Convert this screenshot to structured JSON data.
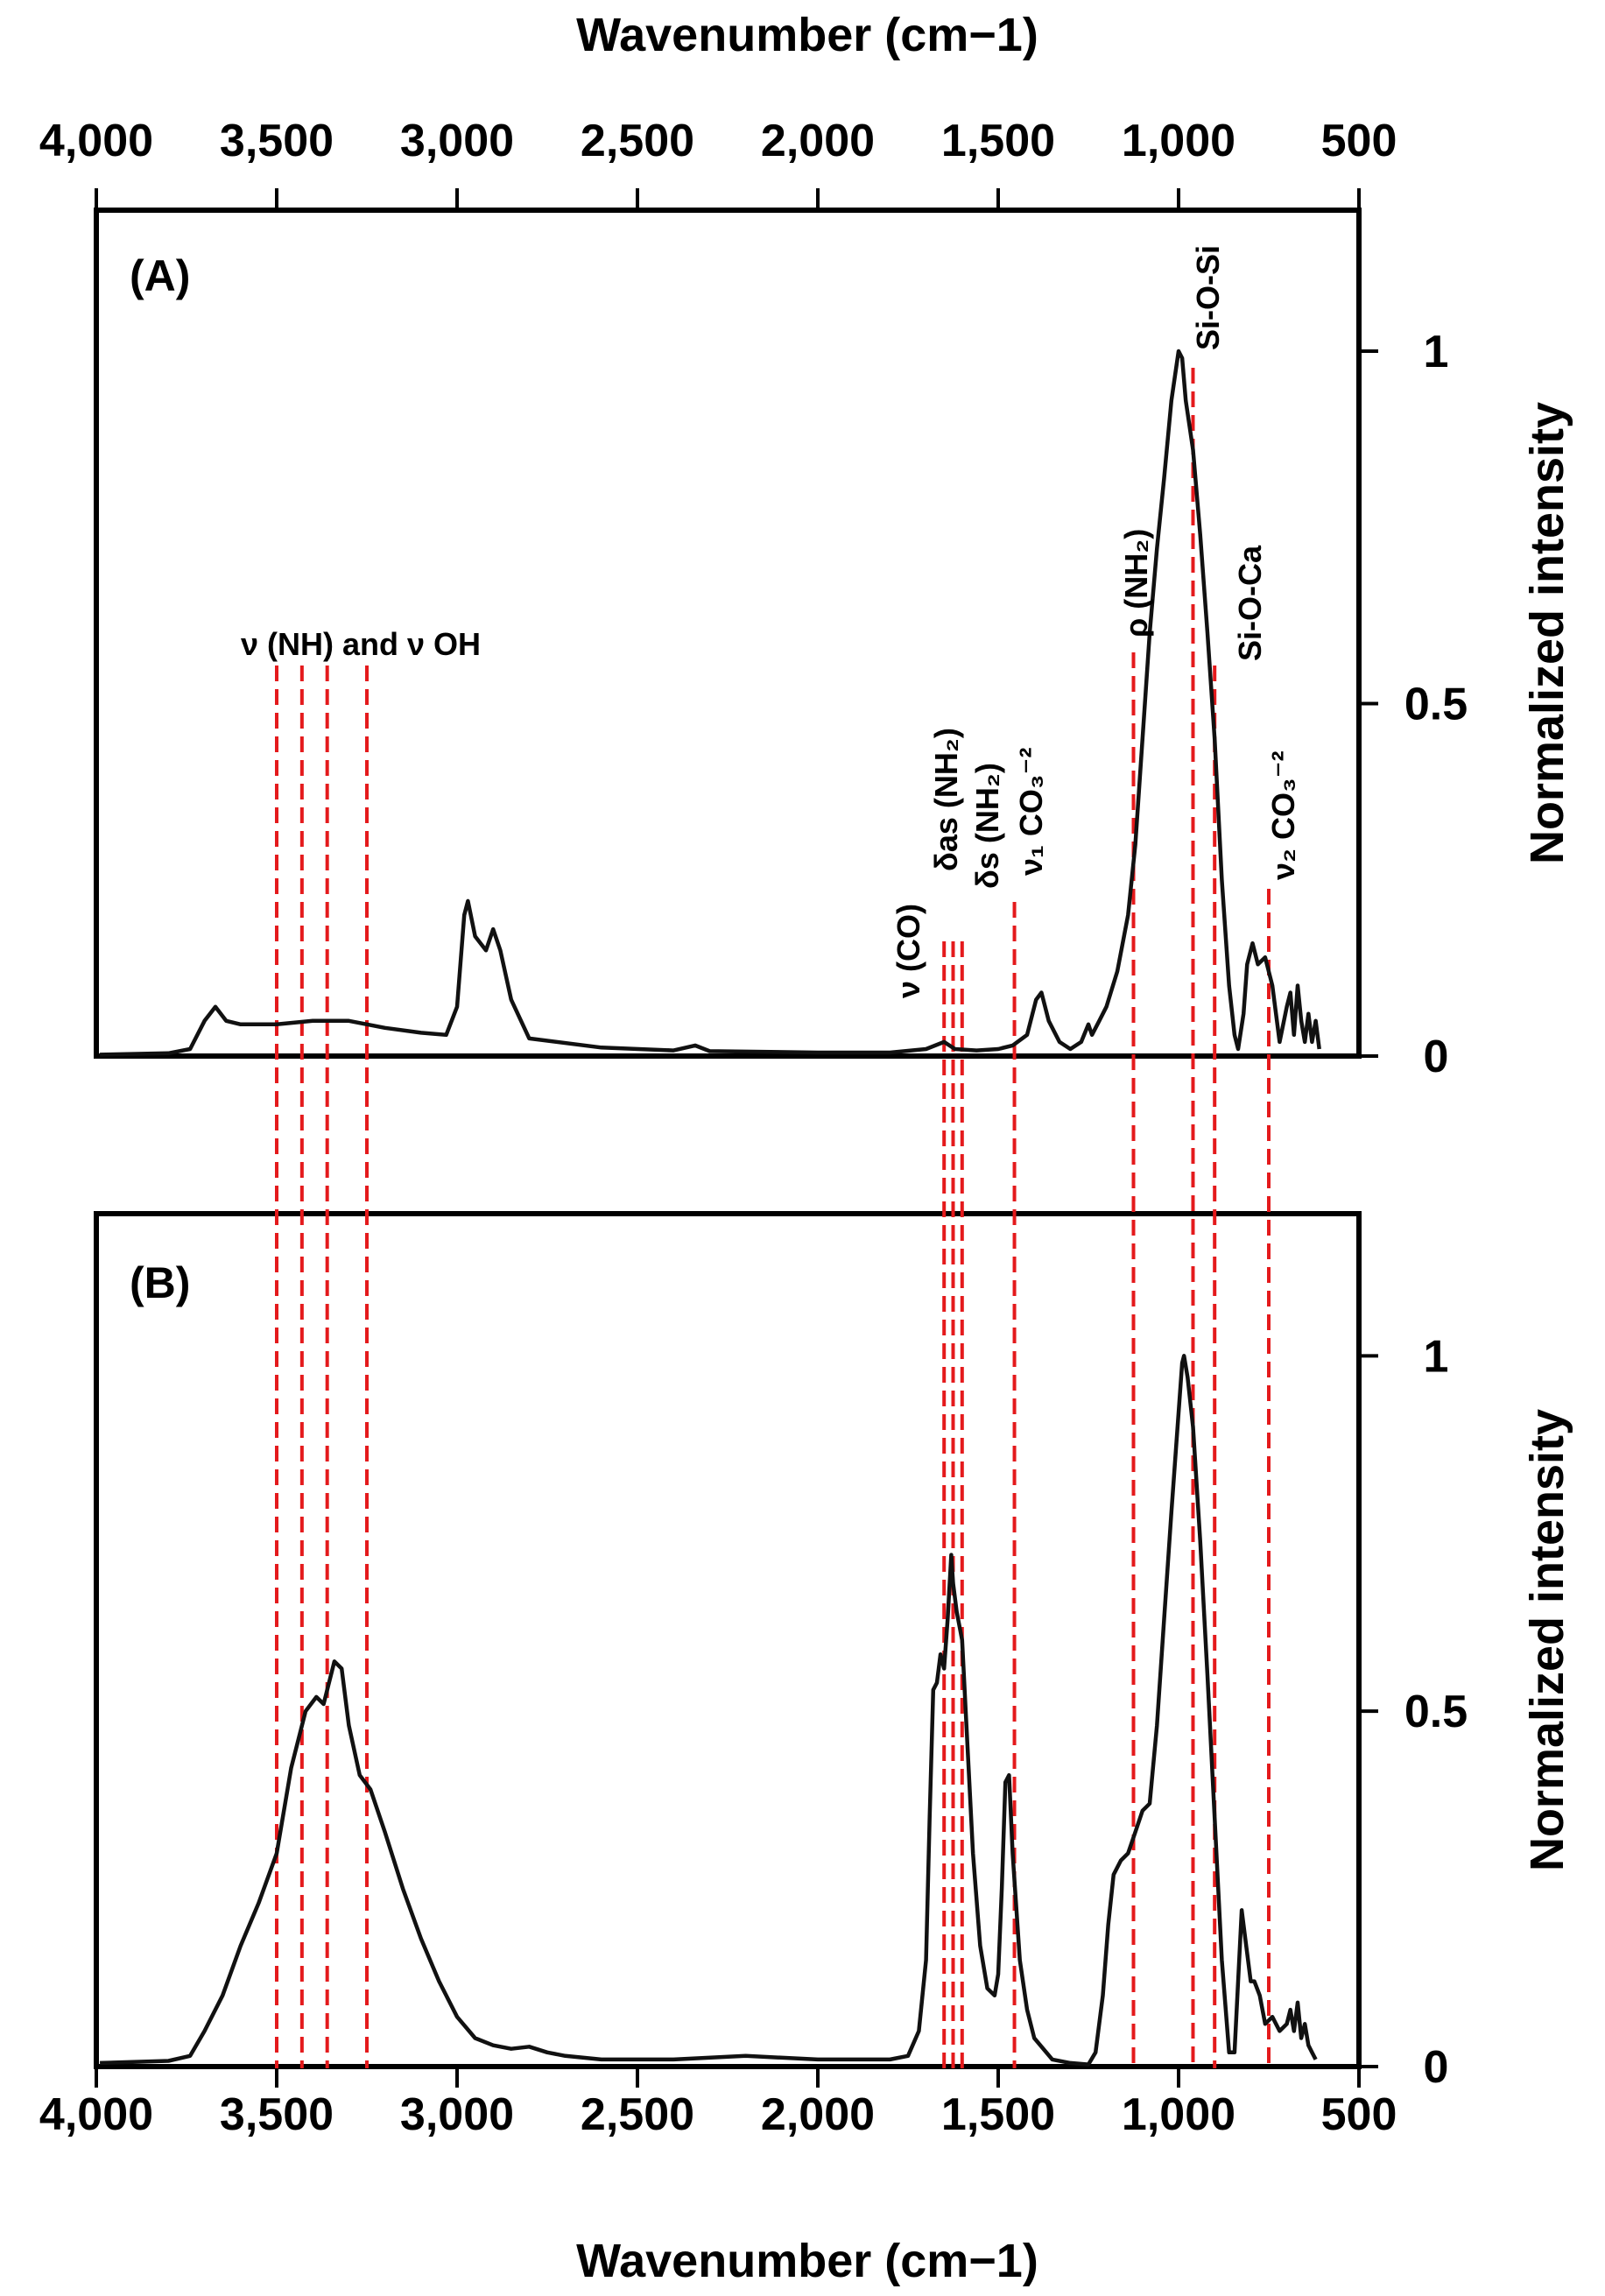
{
  "chart_data": {
    "type": "line",
    "x_axis": {
      "label": "Wavenumber (cm−1)",
      "min": 4000,
      "max": 500,
      "reversed": true,
      "ticks": [
        4000,
        3500,
        3000,
        2500,
        2000,
        1500,
        1000,
        500
      ],
      "tick_labels": [
        "4,000",
        "3,500",
        "3,000",
        "2,500",
        "2,000",
        "1,500",
        "1,000",
        "500"
      ]
    },
    "y_axis": {
      "label": "Normalized intensity",
      "min": 0,
      "max": 1.2,
      "ticks": [
        0,
        0.5,
        1
      ],
      "tick_labels": [
        "0",
        "0.5",
        "1"
      ]
    },
    "panels": [
      {
        "label": "(A)",
        "series": [
          {
            "name": "A",
            "points": [
              [
                3990,
                0.002
              ],
              [
                3800,
                0.004
              ],
              [
                3740,
                0.01
              ],
              [
                3700,
                0.05
              ],
              [
                3670,
                0.07
              ],
              [
                3640,
                0.05
              ],
              [
                3600,
                0.045
              ],
              [
                3500,
                0.045
              ],
              [
                3400,
                0.05
              ],
              [
                3300,
                0.05
              ],
              [
                3200,
                0.04
              ],
              [
                3100,
                0.033
              ],
              [
                3030,
                0.03
              ],
              [
                3000,
                0.07
              ],
              [
                2980,
                0.2
              ],
              [
                2970,
                0.22
              ],
              [
                2950,
                0.17
              ],
              [
                2920,
                0.15
              ],
              [
                2900,
                0.18
              ],
              [
                2880,
                0.15
              ],
              [
                2850,
                0.08
              ],
              [
                2800,
                0.025
              ],
              [
                2600,
                0.012
              ],
              [
                2400,
                0.008
              ],
              [
                2340,
                0.015
              ],
              [
                2300,
                0.007
              ],
              [
                2000,
                0.005
              ],
              [
                1800,
                0.005
              ],
              [
                1700,
                0.01
              ],
              [
                1650,
                0.02
              ],
              [
                1620,
                0.01
              ],
              [
                1560,
                0.008
              ],
              [
                1500,
                0.01
              ],
              [
                1460,
                0.015
              ],
              [
                1420,
                0.03
              ],
              [
                1395,
                0.08
              ],
              [
                1380,
                0.09
              ],
              [
                1360,
                0.05
              ],
              [
                1330,
                0.02
              ],
              [
                1300,
                0.01
              ],
              [
                1270,
                0.02
              ],
              [
                1250,
                0.045
              ],
              [
                1240,
                0.03
              ],
              [
                1220,
                0.05
              ],
              [
                1200,
                0.07
              ],
              [
                1170,
                0.12
              ],
              [
                1140,
                0.2
              ],
              [
                1120,
                0.3
              ],
              [
                1100,
                0.45
              ],
              [
                1080,
                0.6
              ],
              [
                1060,
                0.72
              ],
              [
                1040,
                0.82
              ],
              [
                1020,
                0.93
              ],
              [
                1000,
                1.0
              ],
              [
                990,
                0.99
              ],
              [
                980,
                0.93
              ],
              [
                960,
                0.86
              ],
              [
                940,
                0.74
              ],
              [
                920,
                0.6
              ],
              [
                900,
                0.45
              ],
              [
                880,
                0.25
              ],
              [
                860,
                0.1
              ],
              [
                845,
                0.03
              ],
              [
                835,
                0.01
              ],
              [
                820,
                0.06
              ],
              [
                810,
                0.13
              ],
              [
                795,
                0.16
              ],
              [
                780,
                0.13
              ],
              [
                760,
                0.14
              ],
              [
                740,
                0.1
              ],
              [
                720,
                0.02
              ],
              [
                700,
                0.07
              ],
              [
                690,
                0.09
              ],
              [
                680,
                0.03
              ],
              [
                670,
                0.1
              ],
              [
                660,
                0.05
              ],
              [
                650,
                0.02
              ],
              [
                640,
                0.06
              ],
              [
                630,
                0.02
              ],
              [
                620,
                0.05
              ],
              [
                610,
                0.01
              ]
            ]
          }
        ],
        "annotations": [
          {
            "text": "ν (NH) and ν OH",
            "lines": [
              3500,
              3430,
              3360,
              3250
            ]
          },
          {
            "text": "ν (CO)",
            "lines": [
              1650
            ]
          },
          {
            "text": "δas (NH₂)",
            "lines": [
              1625
            ]
          },
          {
            "text": "δs (NH₂)",
            "lines": [
              1600
            ]
          },
          {
            "text": "ν₁ CO₃⁻²",
            "lines": [
              1455
            ]
          },
          {
            "text": "ρ (NH₂)",
            "lines": [
              1125
            ]
          },
          {
            "text": "Si-O-Si",
            "lines": [
              960
            ]
          },
          {
            "text": "Si-O-Ca",
            "lines": [
              900
            ]
          },
          {
            "text": "ν₂ CO₃⁻²",
            "lines": [
              750
            ]
          }
        ]
      },
      {
        "label": "(B)",
        "series": [
          {
            "name": "B",
            "points": [
              [
                3990,
                0.005
              ],
              [
                3800,
                0.008
              ],
              [
                3740,
                0.015
              ],
              [
                3700,
                0.05
              ],
              [
                3650,
                0.1
              ],
              [
                3600,
                0.17
              ],
              [
                3550,
                0.23
              ],
              [
                3500,
                0.3
              ],
              [
                3460,
                0.42
              ],
              [
                3420,
                0.5
              ],
              [
                3390,
                0.52
              ],
              [
                3370,
                0.51
              ],
              [
                3340,
                0.57
              ],
              [
                3320,
                0.56
              ],
              [
                3300,
                0.48
              ],
              [
                3270,
                0.41
              ],
              [
                3240,
                0.39
              ],
              [
                3200,
                0.33
              ],
              [
                3150,
                0.25
              ],
              [
                3100,
                0.18
              ],
              [
                3050,
                0.12
              ],
              [
                3000,
                0.07
              ],
              [
                2950,
                0.04
              ],
              [
                2900,
                0.03
              ],
              [
                2850,
                0.025
              ],
              [
                2800,
                0.028
              ],
              [
                2750,
                0.02
              ],
              [
                2700,
                0.015
              ],
              [
                2600,
                0.01
              ],
              [
                2400,
                0.01
              ],
              [
                2200,
                0.015
              ],
              [
                2000,
                0.01
              ],
              [
                1800,
                0.01
              ],
              [
                1750,
                0.015
              ],
              [
                1720,
                0.05
              ],
              [
                1700,
                0.15
              ],
              [
                1690,
                0.35
              ],
              [
                1680,
                0.53
              ],
              [
                1670,
                0.54
              ],
              [
                1660,
                0.58
              ],
              [
                1650,
                0.56
              ],
              [
                1640,
                0.63
              ],
              [
                1630,
                0.72
              ],
              [
                1625,
                0.68
              ],
              [
                1615,
                0.64
              ],
              [
                1600,
                0.6
              ],
              [
                1590,
                0.5
              ],
              [
                1570,
                0.3
              ],
              [
                1550,
                0.17
              ],
              [
                1530,
                0.11
              ],
              [
                1510,
                0.1
              ],
              [
                1500,
                0.13
              ],
              [
                1490,
                0.25
              ],
              [
                1480,
                0.4
              ],
              [
                1470,
                0.41
              ],
              [
                1460,
                0.3
              ],
              [
                1440,
                0.15
              ],
              [
                1420,
                0.08
              ],
              [
                1400,
                0.04
              ],
              [
                1350,
                0.01
              ],
              [
                1300,
                0.005
              ],
              [
                1250,
                0.003
              ],
              [
                1230,
                0.02
              ],
              [
                1210,
                0.1
              ],
              [
                1195,
                0.2
              ],
              [
                1180,
                0.27
              ],
              [
                1160,
                0.29
              ],
              [
                1140,
                0.3
              ],
              [
                1120,
                0.33
              ],
              [
                1100,
                0.36
              ],
              [
                1080,
                0.37
              ],
              [
                1060,
                0.48
              ],
              [
                1040,
                0.63
              ],
              [
                1020,
                0.78
              ],
              [
                1000,
                0.92
              ],
              [
                990,
                0.99
              ],
              [
                985,
                1.0
              ],
              [
                975,
                0.97
              ],
              [
                960,
                0.9
              ],
              [
                940,
                0.74
              ],
              [
                920,
                0.55
              ],
              [
                900,
                0.35
              ],
              [
                880,
                0.15
              ],
              [
                860,
                0.02
              ],
              [
                845,
                0.02
              ],
              [
                835,
                0.12
              ],
              [
                825,
                0.22
              ],
              [
                815,
                0.18
              ],
              [
                800,
                0.12
              ],
              [
                790,
                0.12
              ],
              [
                775,
                0.1
              ],
              [
                760,
                0.06
              ],
              [
                740,
                0.07
              ],
              [
                720,
                0.05
              ],
              [
                700,
                0.06
              ],
              [
                690,
                0.08
              ],
              [
                680,
                0.05
              ],
              [
                670,
                0.09
              ],
              [
                660,
                0.04
              ],
              [
                650,
                0.06
              ],
              [
                640,
                0.03
              ],
              [
                630,
                0.02
              ],
              [
                620,
                0.01
              ]
            ]
          }
        ]
      }
    ]
  }
}
